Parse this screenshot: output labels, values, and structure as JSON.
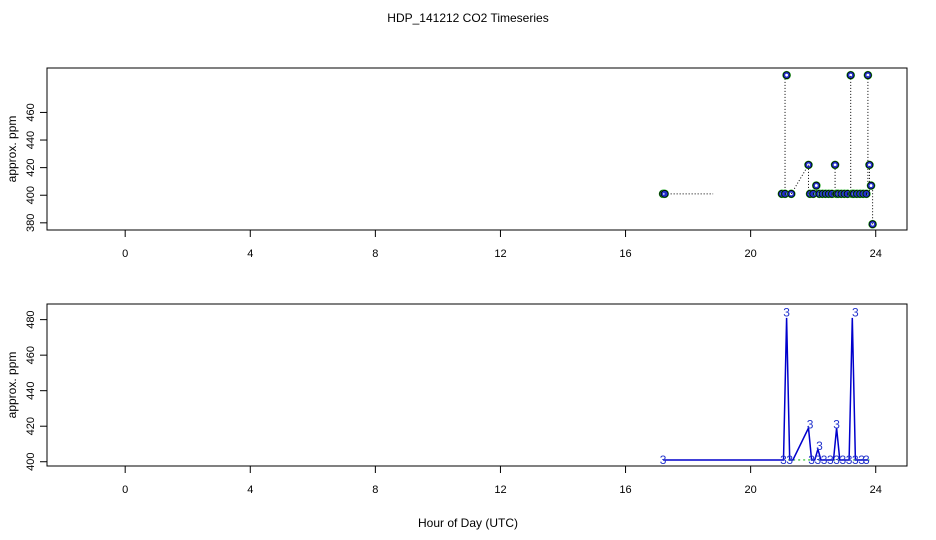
{
  "page_title": "HDP_141212  CO2 Timeseries",
  "xlabel": "Hour of Day (UTC)",
  "chart_data": [
    {
      "type": "scatter",
      "title": "HDP_141212  CO2 Timeseries",
      "xlabel": "",
      "ylabel": "approx. ppm",
      "xlim": [
        -2.5,
        25
      ],
      "ylim": [
        374.8,
        492.2
      ],
      "x_ticks": [
        0,
        4,
        8,
        12,
        16,
        20,
        24
      ],
      "y_ticks": [
        380,
        400,
        420,
        440,
        460
      ],
      "grid": false,
      "colors": {
        "outer": "#000000",
        "inner": "#2233cc",
        "accent": "#22aa22",
        "line": "#000000"
      },
      "series": [
        {
          "x": [
            17.2,
            17.25,
            21.0,
            21.1,
            21.15,
            21.3,
            21.85,
            21.9,
            22.0,
            22.1,
            22.2,
            22.3,
            22.4,
            22.5,
            22.6,
            22.7,
            22.75,
            22.8,
            22.9,
            23.0,
            23.1,
            23.2,
            23.25,
            23.3,
            23.4,
            23.5,
            23.6,
            23.7,
            23.75,
            23.8,
            23.85,
            23.9
          ],
          "y": [
            401,
            401,
            401,
            401,
            487,
            401,
            422,
            401,
            401,
            407,
            401,
            401,
            401,
            401,
            401,
            422,
            401,
            401,
            401,
            401,
            401,
            487,
            401,
            401,
            401,
            401,
            401,
            401,
            487,
            422,
            407,
            379
          ]
        }
      ],
      "segments": [
        {
          "x": [
            17.25,
            18.8
          ],
          "y": [
            401,
            401
          ]
        },
        {
          "x": [
            21.1,
            21.1
          ],
          "y": [
            401,
            487
          ]
        },
        {
          "x": [
            21.3,
            21.85
          ],
          "y": [
            401,
            422
          ]
        },
        {
          "x": [
            21.85,
            21.85
          ],
          "y": [
            401,
            422
          ]
        },
        {
          "x": [
            22.1,
            22.1
          ],
          "y": [
            401,
            407
          ]
        },
        {
          "x": [
            22.7,
            22.7
          ],
          "y": [
            401,
            422
          ]
        },
        {
          "x": [
            23.2,
            23.2
          ],
          "y": [
            401,
            487
          ]
        },
        {
          "x": [
            23.75,
            23.75
          ],
          "y": [
            401,
            487
          ]
        },
        {
          "x": [
            23.8,
            23.8
          ],
          "y": [
            401,
            422
          ]
        },
        {
          "x": [
            23.9,
            23.9
          ],
          "y": [
            379,
            407
          ]
        }
      ]
    },
    {
      "type": "line",
      "title": "",
      "xlabel": "Hour of Day (UTC)",
      "ylabel": "approx. ppm",
      "xlim": [
        -2.5,
        25
      ],
      "ylim": [
        397.6,
        488.8
      ],
      "x_ticks": [
        0,
        4,
        8,
        12,
        16,
        20,
        24
      ],
      "y_ticks": [
        400,
        420,
        440,
        460,
        480
      ],
      "grid": false,
      "colors": {
        "line": "#0000cc",
        "label": "#2233cc",
        "accent": "#22bb22"
      },
      "series": [
        {
          "x": [
            17.2,
            21.0,
            21.05,
            21.15,
            21.25,
            21.35,
            21.85,
            21.95,
            22.05,
            22.15,
            22.25,
            22.35,
            22.45,
            22.55,
            22.65,
            22.75,
            22.85,
            22.95,
            23.05,
            23.15,
            23.25,
            23.35,
            23.45,
            23.55,
            23.65,
            23.75
          ],
          "y": [
            401,
            401,
            401,
            481,
            401,
            401,
            419,
            401,
            401,
            407,
            401,
            401,
            401,
            401,
            401,
            419,
            401,
            401,
            401,
            401,
            481,
            401,
            401,
            401,
            401,
            401
          ]
        }
      ],
      "point_label": "3",
      "point_labels": [
        {
          "x": 17.2,
          "y": 401,
          "text": "3"
        },
        {
          "x": 21.05,
          "y": 401,
          "text": "3"
        },
        {
          "x": 21.25,
          "y": 401,
          "text": "3"
        },
        {
          "x": 21.15,
          "y": 484,
          "text": "3"
        },
        {
          "x": 21.9,
          "y": 421,
          "text": "3"
        },
        {
          "x": 22.2,
          "y": 409,
          "text": "3"
        },
        {
          "x": 22.75,
          "y": 421,
          "text": "3"
        },
        {
          "x": 23.35,
          "y": 484,
          "text": "3"
        },
        {
          "x": 21.95,
          "y": 401,
          "text": "3"
        },
        {
          "x": 22.15,
          "y": 401,
          "text": "3"
        },
        {
          "x": 22.35,
          "y": 401,
          "text": "3"
        },
        {
          "x": 22.55,
          "y": 401,
          "text": "3"
        },
        {
          "x": 22.75,
          "y": 401,
          "text": "3"
        },
        {
          "x": 22.95,
          "y": 401,
          "text": "3"
        },
        {
          "x": 23.15,
          "y": 401,
          "text": "3"
        },
        {
          "x": 23.35,
          "y": 401,
          "text": "3"
        },
        {
          "x": 23.55,
          "y": 401,
          "text": "3"
        },
        {
          "x": 23.7,
          "y": 401,
          "text": "3"
        }
      ],
      "green_dash": {
        "x": [
          21.2,
          23.8
        ],
        "y": [
          401,
          401
        ]
      }
    }
  ]
}
